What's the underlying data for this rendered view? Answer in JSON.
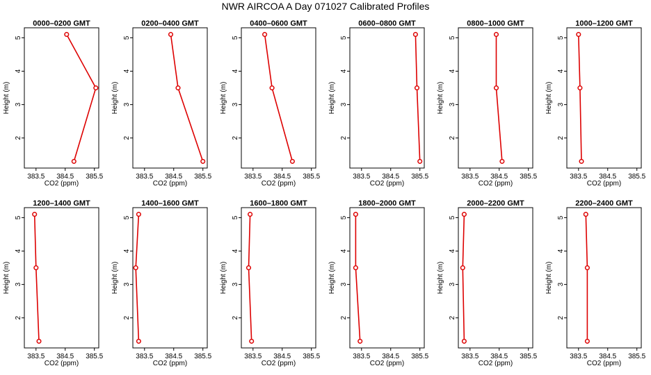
{
  "title": "NWR AIRCOA A  Day 071027  Calibrated Profiles",
  "colors": {
    "series": "#dd0000",
    "axis": "#000000",
    "background": "#ffffff"
  },
  "chart_data": {
    "type": "line",
    "xlabel": "CO2 (ppm)",
    "ylabel": "Height (m)",
    "xlim": [
      383.1,
      385.65
    ],
    "ylim": [
      1.1,
      5.3
    ],
    "xticks": [
      383.5,
      384.5,
      385.5
    ],
    "xtick_labels": [
      "383.5",
      "384.5",
      "385.5"
    ],
    "yticks": [
      2,
      3,
      4,
      5
    ],
    "ytick_labels": [
      "2",
      "3",
      "4",
      "5"
    ],
    "heights": [
      5.1,
      3.5,
      1.3
    ],
    "panels": [
      {
        "title": "0000–0200 GMT",
        "values": [
          384.55,
          385.55,
          384.8
        ]
      },
      {
        "title": "0200–0400 GMT",
        "values": [
          384.4,
          384.65,
          385.5
        ]
      },
      {
        "title": "0400–0600 GMT",
        "values": [
          383.9,
          384.15,
          384.85
        ]
      },
      {
        "title": "0600–0800 GMT",
        "values": [
          385.35,
          385.4,
          385.5
        ]
      },
      {
        "title": "0800–1000 GMT",
        "values": [
          384.4,
          384.4,
          384.6
        ]
      },
      {
        "title": "1000–1200 GMT",
        "values": [
          383.5,
          383.55,
          383.6
        ]
      },
      {
        "title": "1200–1400 GMT",
        "values": [
          383.45,
          383.5,
          383.6
        ]
      },
      {
        "title": "1400–1600 GMT",
        "values": [
          383.3,
          383.2,
          383.3
        ]
      },
      {
        "title": "1600–1800 GMT",
        "values": [
          383.4,
          383.35,
          383.45
        ]
      },
      {
        "title": "1800–2000 GMT",
        "values": [
          383.3,
          383.3,
          383.45
        ]
      },
      {
        "title": "2000–2200 GMT",
        "values": [
          383.3,
          383.25,
          383.3
        ]
      },
      {
        "title": "2200–2400 GMT",
        "values": [
          383.75,
          383.8,
          383.8
        ]
      }
    ]
  }
}
